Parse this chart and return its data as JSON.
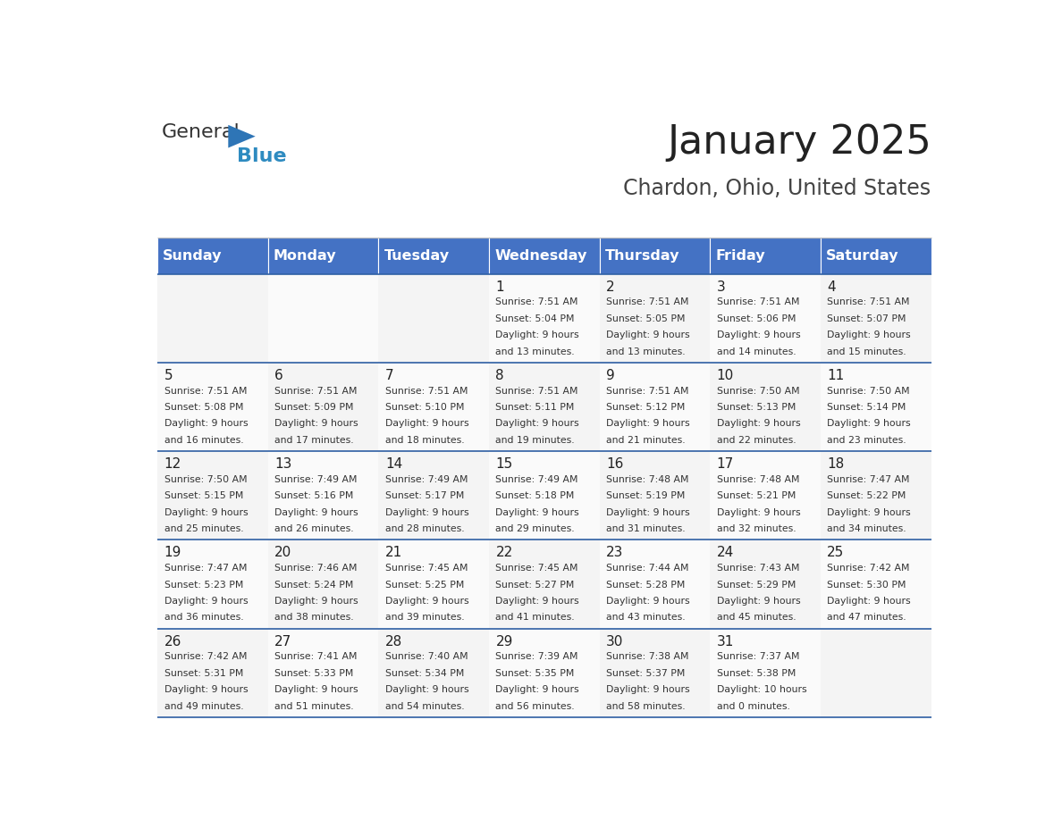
{
  "title": "January 2025",
  "subtitle": "Chardon, Ohio, United States",
  "header_color": "#4472C4",
  "header_text_color": "#FFFFFF",
  "border_color": "#2E5FA3",
  "text_color": "#333333",
  "days_of_week": [
    "Sunday",
    "Monday",
    "Tuesday",
    "Wednesday",
    "Thursday",
    "Friday",
    "Saturday"
  ],
  "calendar_data": [
    [
      {
        "day": "",
        "sunrise": "",
        "sunset": "",
        "daylight_hours": 0,
        "daylight_minutes": 0
      },
      {
        "day": "",
        "sunrise": "",
        "sunset": "",
        "daylight_hours": 0,
        "daylight_minutes": 0
      },
      {
        "day": "",
        "sunrise": "",
        "sunset": "",
        "daylight_hours": 0,
        "daylight_minutes": 0
      },
      {
        "day": "1",
        "sunrise": "7:51 AM",
        "sunset": "5:04 PM",
        "daylight_hours": 9,
        "daylight_minutes": 13
      },
      {
        "day": "2",
        "sunrise": "7:51 AM",
        "sunset": "5:05 PM",
        "daylight_hours": 9,
        "daylight_minutes": 13
      },
      {
        "day": "3",
        "sunrise": "7:51 AM",
        "sunset": "5:06 PM",
        "daylight_hours": 9,
        "daylight_minutes": 14
      },
      {
        "day": "4",
        "sunrise": "7:51 AM",
        "sunset": "5:07 PM",
        "daylight_hours": 9,
        "daylight_minutes": 15
      }
    ],
    [
      {
        "day": "5",
        "sunrise": "7:51 AM",
        "sunset": "5:08 PM",
        "daylight_hours": 9,
        "daylight_minutes": 16
      },
      {
        "day": "6",
        "sunrise": "7:51 AM",
        "sunset": "5:09 PM",
        "daylight_hours": 9,
        "daylight_minutes": 17
      },
      {
        "day": "7",
        "sunrise": "7:51 AM",
        "sunset": "5:10 PM",
        "daylight_hours": 9,
        "daylight_minutes": 18
      },
      {
        "day": "8",
        "sunrise": "7:51 AM",
        "sunset": "5:11 PM",
        "daylight_hours": 9,
        "daylight_minutes": 19
      },
      {
        "day": "9",
        "sunrise": "7:51 AM",
        "sunset": "5:12 PM",
        "daylight_hours": 9,
        "daylight_minutes": 21
      },
      {
        "day": "10",
        "sunrise": "7:50 AM",
        "sunset": "5:13 PM",
        "daylight_hours": 9,
        "daylight_minutes": 22
      },
      {
        "day": "11",
        "sunrise": "7:50 AM",
        "sunset": "5:14 PM",
        "daylight_hours": 9,
        "daylight_minutes": 23
      }
    ],
    [
      {
        "day": "12",
        "sunrise": "7:50 AM",
        "sunset": "5:15 PM",
        "daylight_hours": 9,
        "daylight_minutes": 25
      },
      {
        "day": "13",
        "sunrise": "7:49 AM",
        "sunset": "5:16 PM",
        "daylight_hours": 9,
        "daylight_minutes": 26
      },
      {
        "day": "14",
        "sunrise": "7:49 AM",
        "sunset": "5:17 PM",
        "daylight_hours": 9,
        "daylight_minutes": 28
      },
      {
        "day": "15",
        "sunrise": "7:49 AM",
        "sunset": "5:18 PM",
        "daylight_hours": 9,
        "daylight_minutes": 29
      },
      {
        "day": "16",
        "sunrise": "7:48 AM",
        "sunset": "5:19 PM",
        "daylight_hours": 9,
        "daylight_minutes": 31
      },
      {
        "day": "17",
        "sunrise": "7:48 AM",
        "sunset": "5:21 PM",
        "daylight_hours": 9,
        "daylight_minutes": 32
      },
      {
        "day": "18",
        "sunrise": "7:47 AM",
        "sunset": "5:22 PM",
        "daylight_hours": 9,
        "daylight_minutes": 34
      }
    ],
    [
      {
        "day": "19",
        "sunrise": "7:47 AM",
        "sunset": "5:23 PM",
        "daylight_hours": 9,
        "daylight_minutes": 36
      },
      {
        "day": "20",
        "sunrise": "7:46 AM",
        "sunset": "5:24 PM",
        "daylight_hours": 9,
        "daylight_minutes": 38
      },
      {
        "day": "21",
        "sunrise": "7:45 AM",
        "sunset": "5:25 PM",
        "daylight_hours": 9,
        "daylight_minutes": 39
      },
      {
        "day": "22",
        "sunrise": "7:45 AM",
        "sunset": "5:27 PM",
        "daylight_hours": 9,
        "daylight_minutes": 41
      },
      {
        "day": "23",
        "sunrise": "7:44 AM",
        "sunset": "5:28 PM",
        "daylight_hours": 9,
        "daylight_minutes": 43
      },
      {
        "day": "24",
        "sunrise": "7:43 AM",
        "sunset": "5:29 PM",
        "daylight_hours": 9,
        "daylight_minutes": 45
      },
      {
        "day": "25",
        "sunrise": "7:42 AM",
        "sunset": "5:30 PM",
        "daylight_hours": 9,
        "daylight_minutes": 47
      }
    ],
    [
      {
        "day": "26",
        "sunrise": "7:42 AM",
        "sunset": "5:31 PM",
        "daylight_hours": 9,
        "daylight_minutes": 49
      },
      {
        "day": "27",
        "sunrise": "7:41 AM",
        "sunset": "5:33 PM",
        "daylight_hours": 9,
        "daylight_minutes": 51
      },
      {
        "day": "28",
        "sunrise": "7:40 AM",
        "sunset": "5:34 PM",
        "daylight_hours": 9,
        "daylight_minutes": 54
      },
      {
        "day": "29",
        "sunrise": "7:39 AM",
        "sunset": "5:35 PM",
        "daylight_hours": 9,
        "daylight_minutes": 56
      },
      {
        "day": "30",
        "sunrise": "7:38 AM",
        "sunset": "5:37 PM",
        "daylight_hours": 9,
        "daylight_minutes": 58
      },
      {
        "day": "31",
        "sunrise": "7:37 AM",
        "sunset": "5:38 PM",
        "daylight_hours": 10,
        "daylight_minutes": 0
      },
      {
        "day": "",
        "sunrise": "",
        "sunset": "",
        "daylight_hours": 0,
        "daylight_minutes": 0
      }
    ]
  ],
  "logo_text_general": "General",
  "logo_text_blue": "Blue",
  "logo_color_general": "#333333",
  "logo_color_blue": "#2E8BC0",
  "logo_triangle_color": "#2E75B6"
}
